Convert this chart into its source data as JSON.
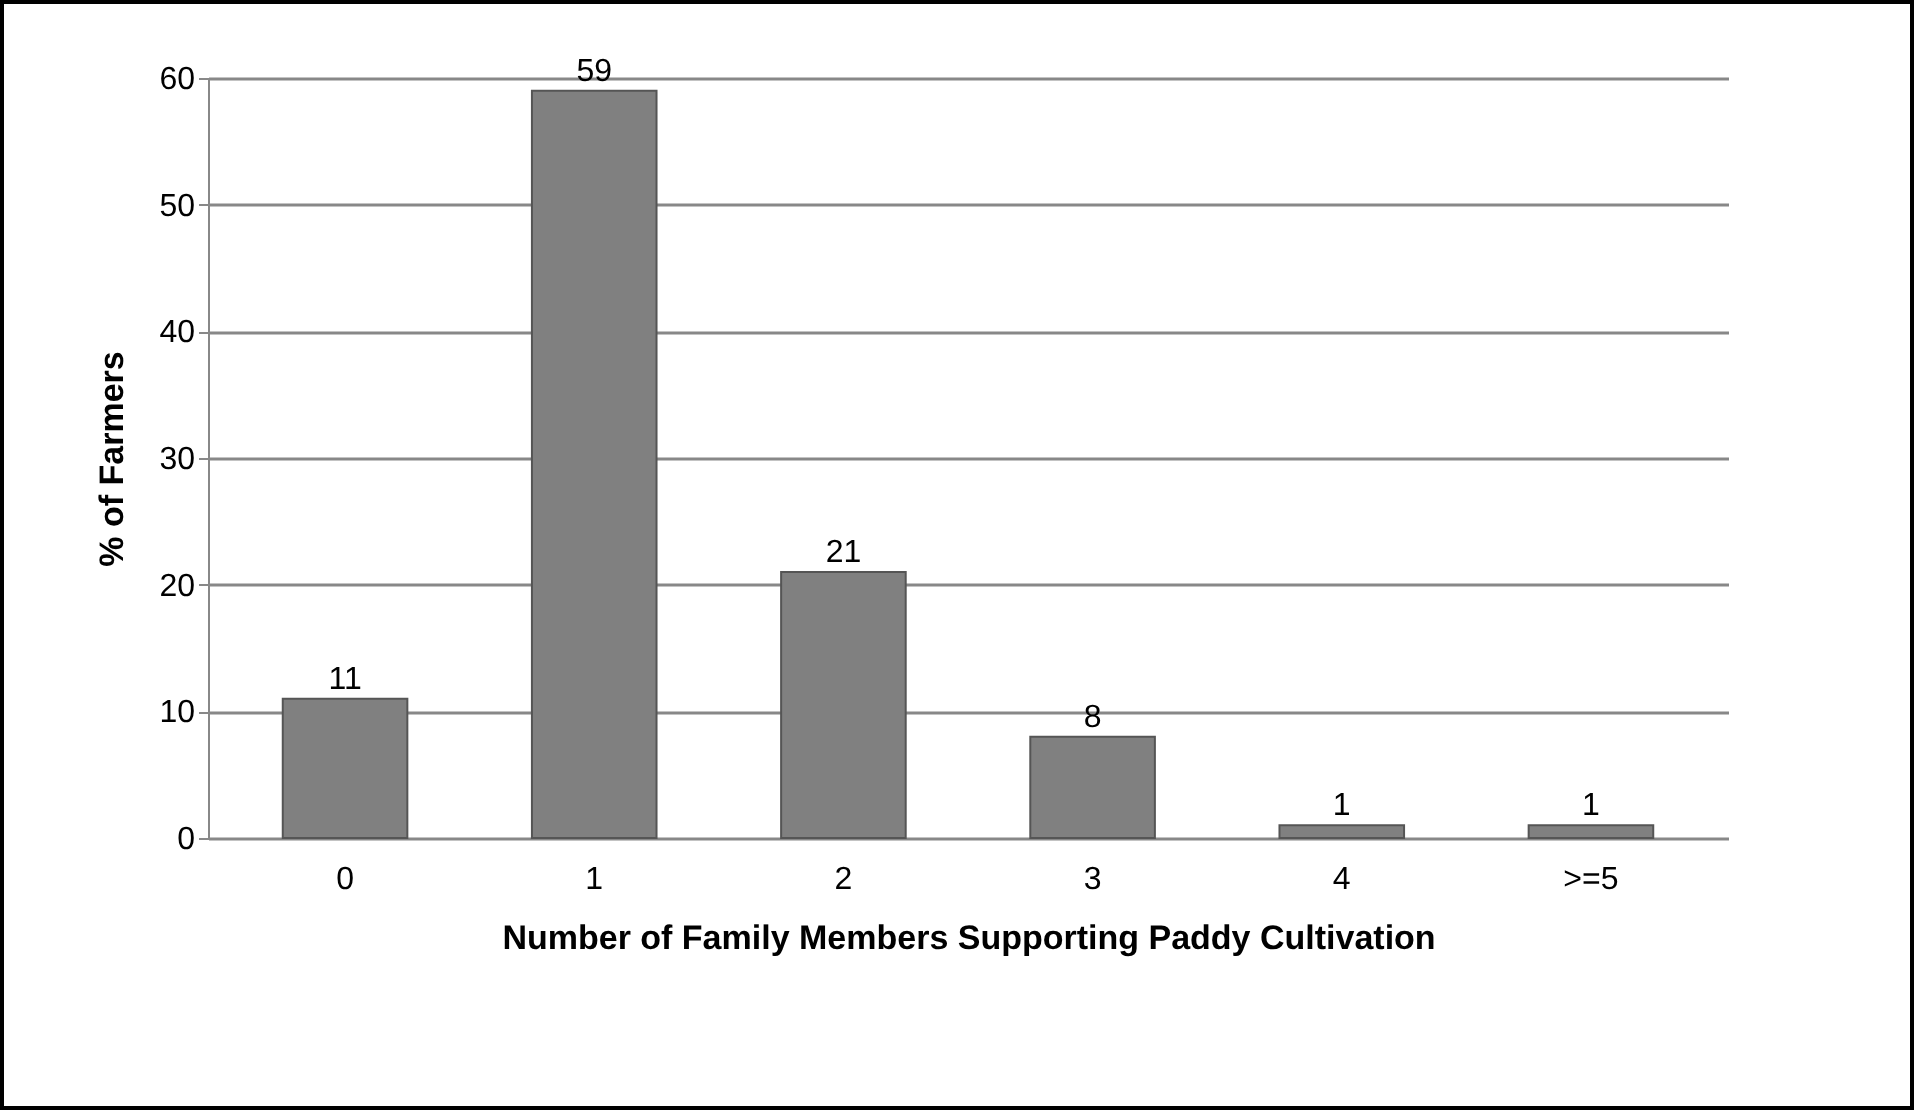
{
  "chart_data": {
    "type": "bar",
    "xlabel": "Number of Family Members  Supporting  Paddy Cultivation",
    "ylabel": "% of Farmers",
    "categories": [
      "0",
      "1",
      "2",
      "3",
      "4",
      ">=5"
    ],
    "values": [
      11,
      59,
      21,
      8,
      1,
      1
    ],
    "color": "#808080",
    "ylim": [
      0,
      60
    ],
    "yticks": [
      0,
      10,
      20,
      30,
      40,
      50,
      60
    ],
    "grid": "y",
    "data_labels": true
  }
}
